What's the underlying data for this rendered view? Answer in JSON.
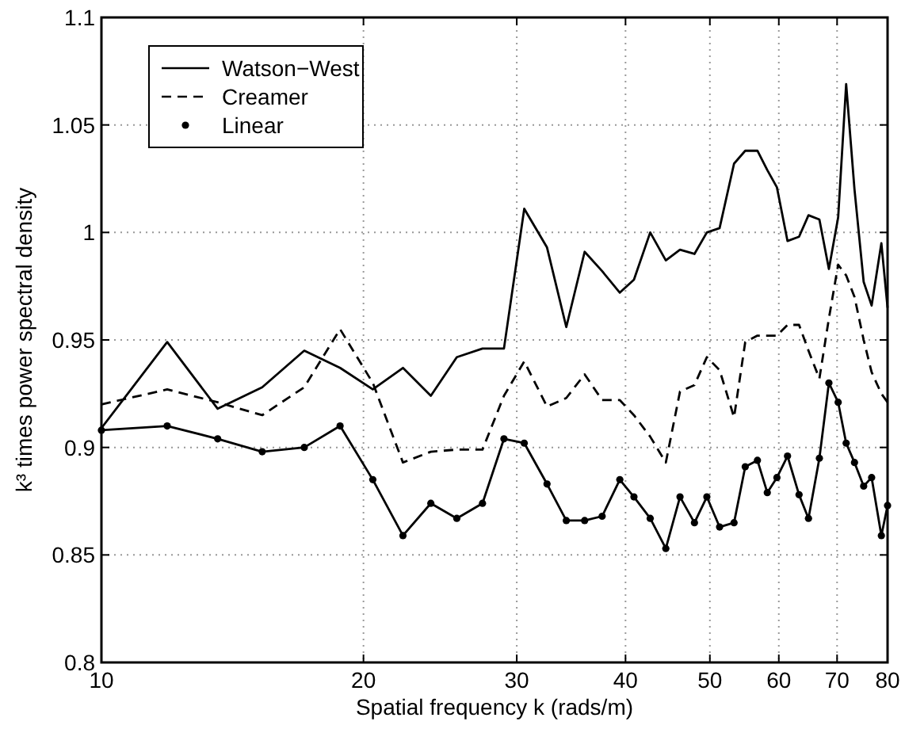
{
  "chart_data": {
    "type": "line",
    "xlabel": "Spatial frequency k (rads/m)",
    "ylabel": "k³ times power spectral density",
    "log": "x",
    "grid": true,
    "legend": "top left",
    "x": [
      10,
      11.9,
      13.6,
      15.3,
      17.1,
      18.8,
      20.5,
      22.2,
      23.9,
      25.6,
      27.4,
      29.0,
      30.6,
      32.5,
      34.2,
      35.9,
      37.6,
      39.4,
      40.9,
      42.7,
      44.5,
      46.2,
      48.0,
      49.6,
      51.3,
      53.3,
      54.9,
      56.7,
      58.2,
      59.7,
      61.4,
      63.3,
      64.9,
      66.8,
      68.5,
      70.2,
      71.7,
      73.3,
      75.1,
      76.7,
      78.7,
      80
    ],
    "xlim": [
      10,
      80
    ],
    "xticks": [
      10,
      20,
      30,
      40,
      50,
      60,
      70,
      80
    ],
    "ylim": [
      0.8,
      1.1
    ],
    "yticks": [
      0.8,
      0.85,
      0.9,
      0.95,
      1,
      1.05,
      1.1
    ],
    "series": [
      {
        "name": "Watson−West",
        "color": "#000000",
        "line_style": "solid",
        "marker": "none",
        "values": [
          0.909,
          0.949,
          0.918,
          0.928,
          0.945,
          0.937,
          0.927,
          0.937,
          0.924,
          0.942,
          0.946,
          0.946,
          1.011,
          0.993,
          0.956,
          0.991,
          0.982,
          0.972,
          0.978,
          1.0,
          0.987,
          0.992,
          0.99,
          1.0,
          1.002,
          1.032,
          1.038,
          1.038,
          1.029,
          1.021,
          0.996,
          0.998,
          1.008,
          1.006,
          0.983,
          1.007,
          1.069,
          1.02,
          0.977,
          0.966,
          0.995,
          0.965
        ]
      },
      {
        "name": "Creamer",
        "color": "#000000",
        "line_style": "dashed",
        "marker": "none",
        "values": [
          0.92,
          0.927,
          0.921,
          0.915,
          0.928,
          0.955,
          0.93,
          0.893,
          0.898,
          0.899,
          0.899,
          0.924,
          0.94,
          0.919,
          0.923,
          0.934,
          0.922,
          0.922,
          0.915,
          0.905,
          0.893,
          0.926,
          0.929,
          0.942,
          0.936,
          0.914,
          0.949,
          0.952,
          0.952,
          0.952,
          0.957,
          0.957,
          0.945,
          0.932,
          0.96,
          0.985,
          0.98,
          0.97,
          0.95,
          0.935,
          0.925,
          0.921
        ]
      },
      {
        "name": "Linear",
        "color": "#000000",
        "line_style": "solid",
        "marker": "circle",
        "values": [
          0.908,
          0.91,
          0.904,
          0.898,
          0.9,
          0.91,
          0.885,
          0.859,
          0.874,
          0.867,
          0.874,
          0.904,
          0.902,
          0.883,
          0.866,
          0.866,
          0.868,
          0.885,
          0.877,
          0.867,
          0.853,
          0.877,
          0.865,
          0.877,
          0.863,
          0.865,
          0.891,
          0.894,
          0.879,
          0.886,
          0.896,
          0.878,
          0.867,
          0.895,
          0.93,
          0.921,
          0.902,
          0.893,
          0.882,
          0.886,
          0.859,
          0.873
        ]
      }
    ]
  }
}
